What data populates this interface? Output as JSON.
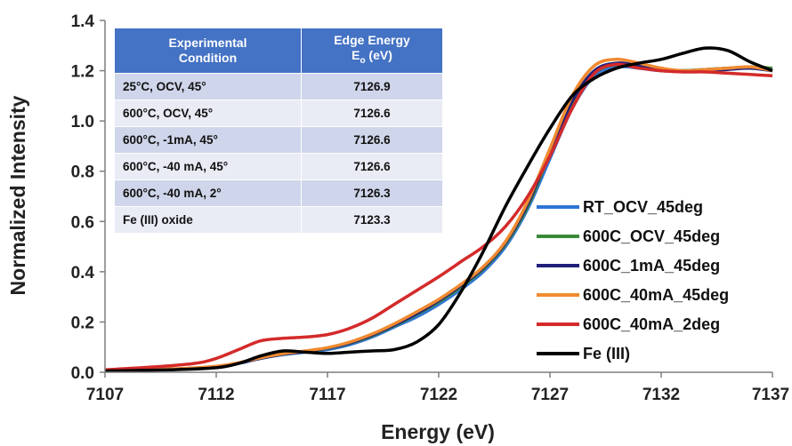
{
  "chart_data": {
    "type": "line",
    "xlabel": "Energy (eV)",
    "ylabel": "Normalized Intensity",
    "xlim": [
      7107,
      7137
    ],
    "ylim": [
      0.0,
      1.4
    ],
    "xticks": [
      "7107",
      "7112",
      "7117",
      "7122",
      "7127",
      "7132",
      "7137"
    ],
    "yticks": [
      "0.0",
      "0.2",
      "0.4",
      "0.6",
      "0.8",
      "1.0",
      "1.2",
      "1.4"
    ],
    "grid": false,
    "legend_position": "right",
    "series": [
      {
        "name": "RT_OCV_45deg",
        "color": "#2e75d6",
        "x": [
          7107,
          7110,
          7112,
          7113,
          7114,
          7115,
          7116,
          7117,
          7118,
          7119,
          7120,
          7121,
          7122,
          7123,
          7124,
          7125,
          7126,
          7127,
          7128,
          7129,
          7130,
          7131,
          7132,
          7133,
          7134,
          7135,
          7136,
          7137
        ],
        "y": [
          0.005,
          0.012,
          0.022,
          0.035,
          0.055,
          0.07,
          0.08,
          0.09,
          0.11,
          0.14,
          0.18,
          0.22,
          0.27,
          0.33,
          0.4,
          0.5,
          0.65,
          0.85,
          1.05,
          1.18,
          1.215,
          1.21,
          1.2,
          1.2,
          1.205,
          1.21,
          1.21,
          1.21
        ]
      },
      {
        "name": "600C_OCV_45deg",
        "color": "#3a8a3a",
        "x": [
          7107,
          7110,
          7112,
          7113,
          7114,
          7115,
          7116,
          7117,
          7118,
          7119,
          7120,
          7121,
          7122,
          7123,
          7124,
          7125,
          7126,
          7127,
          7128,
          7129,
          7130,
          7131,
          7132,
          7133,
          7134,
          7135,
          7136,
          7137
        ],
        "y": [
          0.005,
          0.012,
          0.022,
          0.036,
          0.056,
          0.072,
          0.082,
          0.095,
          0.115,
          0.145,
          0.185,
          0.23,
          0.28,
          0.34,
          0.41,
          0.51,
          0.66,
          0.87,
          1.07,
          1.19,
          1.225,
          1.215,
          1.2,
          1.2,
          1.205,
          1.21,
          1.215,
          1.21
        ]
      },
      {
        "name": "600C_1mA_45deg",
        "color": "#1f1f7a",
        "x": [
          7107,
          7110,
          7112,
          7113,
          7114,
          7115,
          7116,
          7117,
          7118,
          7119,
          7120,
          7121,
          7122,
          7123,
          7124,
          7125,
          7126,
          7127,
          7128,
          7129,
          7130,
          7131,
          7132,
          7133,
          7134,
          7135,
          7136,
          7137
        ],
        "y": [
          0.005,
          0.012,
          0.022,
          0.036,
          0.056,
          0.072,
          0.083,
          0.096,
          0.117,
          0.148,
          0.188,
          0.233,
          0.285,
          0.345,
          0.415,
          0.515,
          0.67,
          0.88,
          1.08,
          1.2,
          1.23,
          1.22,
          1.205,
          1.2,
          1.2,
          1.205,
          1.21,
          1.2
        ]
      },
      {
        "name": "600C_40mA_45deg",
        "color": "#f08a30",
        "x": [
          7107,
          7110,
          7112,
          7113,
          7114,
          7115,
          7116,
          7117,
          7118,
          7119,
          7120,
          7121,
          7122,
          7123,
          7124,
          7125,
          7126,
          7127,
          7128,
          7129,
          7130,
          7131,
          7132,
          7133,
          7134,
          7135,
          7136,
          7137
        ],
        "y": [
          0.006,
          0.013,
          0.024,
          0.038,
          0.058,
          0.074,
          0.085,
          0.098,
          0.12,
          0.152,
          0.193,
          0.24,
          0.29,
          0.35,
          0.42,
          0.52,
          0.68,
          0.89,
          1.1,
          1.22,
          1.245,
          1.23,
          1.21,
          1.2,
          1.205,
          1.21,
          1.215,
          1.2
        ]
      },
      {
        "name": "600C_40mA_2deg",
        "color": "#d42a2a",
        "x": [
          7107,
          7109,
          7111,
          7112,
          7113,
          7114,
          7115,
          7116,
          7117,
          7118,
          7119,
          7120,
          7121,
          7122,
          7123,
          7124,
          7125,
          7126,
          7127,
          7128,
          7129,
          7130,
          7131,
          7132,
          7133,
          7134,
          7135,
          7136,
          7137
        ],
        "y": [
          0.01,
          0.02,
          0.035,
          0.055,
          0.09,
          0.125,
          0.135,
          0.14,
          0.15,
          0.175,
          0.215,
          0.27,
          0.325,
          0.38,
          0.44,
          0.5,
          0.58,
          0.7,
          0.86,
          1.05,
          1.19,
          1.225,
          1.21,
          1.2,
          1.195,
          1.195,
          1.19,
          1.185,
          1.18
        ]
      },
      {
        "name": "Fe (III)",
        "color": "#000000",
        "x": [
          7107,
          7110,
          7112,
          7113,
          7114,
          7115,
          7116,
          7117,
          7118,
          7119,
          7120,
          7121,
          7122,
          7123,
          7124,
          7125,
          7126,
          7127,
          7128,
          7129,
          7130,
          7131,
          7132,
          7133,
          7134,
          7135,
          7136,
          7137
        ],
        "y": [
          0.005,
          0.01,
          0.018,
          0.035,
          0.065,
          0.085,
          0.08,
          0.075,
          0.08,
          0.085,
          0.09,
          0.12,
          0.19,
          0.32,
          0.48,
          0.66,
          0.82,
          0.97,
          1.1,
          1.17,
          1.21,
          1.23,
          1.245,
          1.27,
          1.29,
          1.28,
          1.235,
          1.2
        ]
      }
    ],
    "inset_table": {
      "headers": [
        "Experimental Condition",
        "Edge Energy E_o (eV)"
      ],
      "rows": [
        [
          "25°C, OCV, 45°",
          "7126.9"
        ],
        [
          "600°C, OCV, 45°",
          "7126.6"
        ],
        [
          "600°C, -1mA, 45°",
          "7126.6"
        ],
        [
          "600°C, -40 mA, 45°",
          "7126.6"
        ],
        [
          "600°C, -40 mA, 2°",
          "7126.3"
        ],
        [
          "Fe (III) oxide",
          "7123.3"
        ]
      ]
    }
  },
  "table": {
    "header_condition_1": "Experimental",
    "header_condition_2": "Condition",
    "header_edge_1": "Edge Energy",
    "header_edge_2a": "E",
    "header_edge_2sub": "o",
    "header_edge_2b": " (eV)"
  }
}
